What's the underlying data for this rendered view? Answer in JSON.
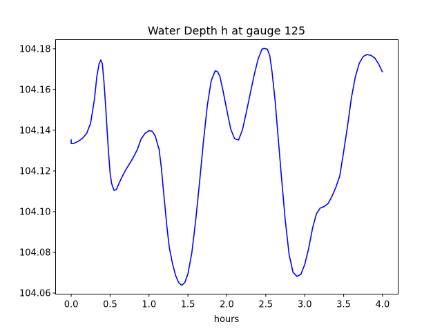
{
  "chart_data": {
    "type": "line",
    "title": "Water Depth h at gauge 125",
    "xlabel": "hours",
    "ylabel": "",
    "xlim": [
      -0.2,
      4.2
    ],
    "ylim": [
      104.0595,
      104.1845
    ],
    "xticks": [
      0.0,
      0.5,
      1.0,
      1.5,
      2.0,
      2.5,
      3.0,
      3.5,
      4.0
    ],
    "xtick_labels": [
      "0.0",
      "0.5",
      "1.0",
      "1.5",
      "2.0",
      "2.5",
      "3.0",
      "3.5",
      "4.0"
    ],
    "yticks": [
      104.06,
      104.08,
      104.1,
      104.12,
      104.14,
      104.16,
      104.18
    ],
    "ytick_labels": [
      "104.06",
      "104.08",
      "104.10",
      "104.12",
      "104.14",
      "104.16",
      "104.18"
    ],
    "grid": false,
    "series": [
      {
        "color": "#0000ff",
        "x": [
          0.0,
          0.0,
          0.02,
          0.05,
          0.1,
          0.15,
          0.2,
          0.25,
          0.3,
          0.33,
          0.36,
          0.38,
          0.4,
          0.42,
          0.44,
          0.46,
          0.48,
          0.5,
          0.52,
          0.55,
          0.58,
          0.61,
          0.65,
          0.7,
          0.75,
          0.8,
          0.85,
          0.88,
          0.9,
          0.95,
          1.0,
          1.04,
          1.08,
          1.12,
          1.13,
          1.16,
          1.18,
          1.2,
          1.23,
          1.26,
          1.3,
          1.34,
          1.38,
          1.42,
          1.46,
          1.5,
          1.55,
          1.6,
          1.65,
          1.7,
          1.75,
          1.8,
          1.85,
          1.88,
          1.91,
          1.95,
          2.0,
          2.05,
          2.1,
          2.15,
          2.2,
          2.25,
          2.3,
          2.35,
          2.4,
          2.45,
          2.48,
          2.52,
          2.55,
          2.58,
          2.62,
          2.65,
          2.7,
          2.75,
          2.8,
          2.85,
          2.9,
          2.95,
          3.0,
          3.05,
          3.1,
          3.15,
          3.2,
          3.25,
          3.3,
          3.35,
          3.4,
          3.45,
          3.5,
          3.55,
          3.6,
          3.65,
          3.7,
          3.75,
          3.8,
          3.85,
          3.9,
          3.95,
          4.0
        ],
        "y": [
          104.1355,
          104.1335,
          104.1334,
          104.1338,
          104.1348,
          104.1362,
          104.1385,
          104.1435,
          104.1555,
          104.1665,
          104.1728,
          104.1745,
          104.1728,
          104.1645,
          104.1535,
          104.141,
          104.129,
          104.119,
          104.1138,
          104.1105,
          104.1108,
          104.1135,
          104.1168,
          104.1205,
          104.1235,
          104.1268,
          104.1305,
          104.1338,
          104.1358,
          104.1385,
          104.1398,
          104.1395,
          104.1372,
          104.1318,
          104.1305,
          104.121,
          104.1125,
          104.1045,
          104.0925,
          104.0825,
          104.0748,
          104.0688,
          104.0652,
          104.0638,
          104.0652,
          104.0695,
          104.0798,
          104.0958,
          104.1148,
          104.1348,
          104.1525,
          104.1645,
          104.1692,
          104.1688,
          104.1665,
          104.1595,
          104.1498,
          104.1405,
          104.1358,
          104.1352,
          104.1402,
          104.1488,
          104.158,
          104.167,
          104.1748,
          104.1798,
          104.1802,
          104.1798,
          104.1768,
          104.1688,
          104.1545,
          104.1405,
          104.1175,
          104.0958,
          104.0788,
          104.0702,
          104.0682,
          104.0692,
          104.074,
          104.0818,
          104.0918,
          104.099,
          104.1018,
          104.1025,
          104.104,
          104.1075,
          104.112,
          104.1175,
          104.1295,
          104.142,
          104.156,
          104.1662,
          104.1728,
          104.1762,
          104.1772,
          104.1768,
          104.1755,
          104.1725,
          104.1685
        ]
      }
    ]
  }
}
